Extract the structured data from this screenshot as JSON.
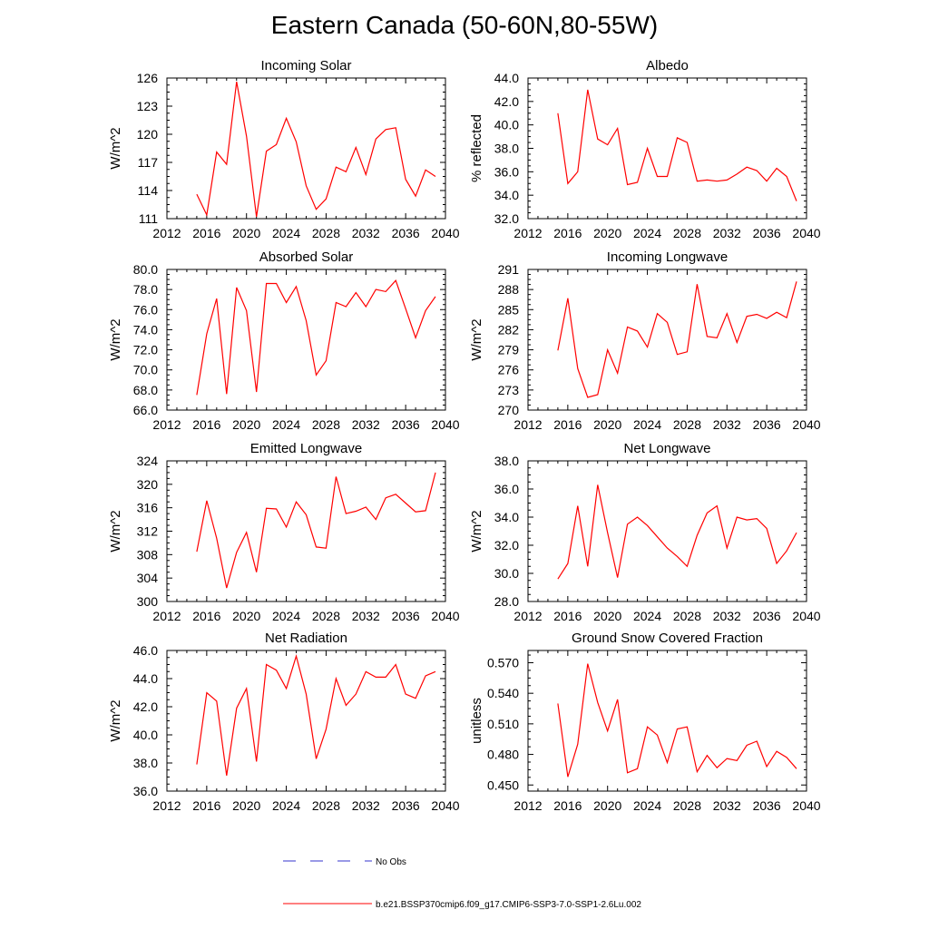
{
  "figure": {
    "title": "Eastern Canada (50-60N,80-55W)"
  },
  "legend": {
    "entries": [
      {
        "label": "No Obs",
        "color": "#3333cc",
        "style": "dashed"
      },
      {
        "label": "b.e21.BSSP370cmip6.f09_g17.CMIP6-SSP3-7.0-SSP1-2.6Lu.002",
        "color": "#ff0000",
        "style": "solid"
      }
    ]
  },
  "chart_data": [
    {
      "type": "line",
      "title": "Incoming Solar",
      "ylabel": "W/m^2",
      "xlim": [
        2012,
        2040
      ],
      "xticks": [
        "2012",
        "2016",
        "2020",
        "2024",
        "2028",
        "2032",
        "2036",
        "2040"
      ],
      "ylim": [
        111,
        126
      ],
      "yticks": [
        "111",
        "114",
        "117",
        "120",
        "123",
        "126"
      ],
      "series": [
        {
          "color": "#ff0000",
          "x": [
            2015,
            2016,
            2017,
            2018,
            2019,
            2020,
            2021,
            2022,
            2023,
            2024,
            2025,
            2026,
            2027,
            2028,
            2029,
            2030,
            2031,
            2032,
            2033,
            2034,
            2035,
            2036,
            2037,
            2038,
            2039
          ],
          "y": [
            113.6,
            111.4,
            118.1,
            116.8,
            125.6,
            119.8,
            111.2,
            118.2,
            118.9,
            121.7,
            119.2,
            114.5,
            112.0,
            113.1,
            116.5,
            116.0,
            118.6,
            115.7,
            119.5,
            120.5,
            120.7,
            115.2,
            113.4,
            116.2,
            115.5
          ]
        }
      ]
    },
    {
      "type": "line",
      "title": "Albedo",
      "ylabel": "% reflected",
      "xlim": [
        2012,
        2040
      ],
      "xticks": [
        "2012",
        "2016",
        "2020",
        "2024",
        "2028",
        "2032",
        "2036",
        "2040"
      ],
      "ylim": [
        32,
        44
      ],
      "yticks": [
        "32.0",
        "34.0",
        "36.0",
        "38.0",
        "40.0",
        "42.0",
        "44.0"
      ],
      "series": [
        {
          "color": "#ff0000",
          "x": [
            2015,
            2016,
            2017,
            2018,
            2019,
            2020,
            2021,
            2022,
            2023,
            2024,
            2025,
            2026,
            2027,
            2028,
            2029,
            2030,
            2031,
            2032,
            2033,
            2034,
            2035,
            2036,
            2037,
            2038,
            2039
          ],
          "y": [
            41.0,
            35.0,
            36.0,
            43.0,
            38.8,
            38.3,
            39.7,
            34.9,
            35.1,
            38.0,
            35.6,
            35.6,
            38.9,
            38.5,
            35.2,
            35.3,
            35.2,
            35.3,
            35.8,
            36.4,
            36.1,
            35.2,
            36.3,
            35.6,
            33.5
          ]
        }
      ]
    },
    {
      "type": "line",
      "title": "Absorbed Solar",
      "ylabel": "W/m^2",
      "xlim": [
        2012,
        2040
      ],
      "xticks": [
        "2012",
        "2016",
        "2020",
        "2024",
        "2028",
        "2032",
        "2036",
        "2040"
      ],
      "ylim": [
        66,
        80
      ],
      "yticks": [
        "66.0",
        "68.0",
        "70.0",
        "72.0",
        "74.0",
        "76.0",
        "78.0",
        "80.0"
      ],
      "series": [
        {
          "color": "#ff0000",
          "x": [
            2015,
            2016,
            2017,
            2018,
            2019,
            2020,
            2021,
            2022,
            2023,
            2024,
            2025,
            2026,
            2027,
            2028,
            2029,
            2030,
            2031,
            2032,
            2033,
            2034,
            2035,
            2036,
            2037,
            2038,
            2039
          ],
          "y": [
            67.5,
            73.6,
            77.1,
            67.6,
            78.2,
            75.9,
            67.8,
            78.6,
            78.6,
            76.7,
            78.3,
            74.9,
            69.5,
            70.9,
            76.7,
            76.3,
            77.7,
            76.3,
            78.0,
            77.8,
            78.9,
            76.1,
            73.2,
            75.9,
            77.3
          ]
        }
      ]
    },
    {
      "type": "line",
      "title": "Incoming Longwave",
      "ylabel": "W/m^2",
      "xlim": [
        2012,
        2040
      ],
      "xticks": [
        "2012",
        "2016",
        "2020",
        "2024",
        "2028",
        "2032",
        "2036",
        "2040"
      ],
      "ylim": [
        270,
        291
      ],
      "yticks": [
        "270",
        "273",
        "276",
        "279",
        "282",
        "285",
        "288",
        "291"
      ],
      "series": [
        {
          "color": "#ff0000",
          "x": [
            2015,
            2016,
            2017,
            2018,
            2019,
            2020,
            2021,
            2022,
            2023,
            2024,
            2025,
            2026,
            2027,
            2028,
            2029,
            2030,
            2031,
            2032,
            2033,
            2034,
            2035,
            2036,
            2037,
            2038,
            2039
          ],
          "y": [
            278.9,
            286.7,
            276.2,
            271.9,
            272.3,
            279.0,
            275.5,
            282.4,
            281.8,
            279.4,
            284.4,
            283.1,
            278.3,
            278.7,
            288.8,
            281.0,
            280.8,
            284.4,
            280.1,
            284.0,
            284.3,
            283.7,
            284.6,
            283.8,
            289.2
          ]
        }
      ]
    },
    {
      "type": "line",
      "title": "Emitted Longwave",
      "ylabel": "W/m^2",
      "xlim": [
        2012,
        2040
      ],
      "xticks": [
        "2012",
        "2016",
        "2020",
        "2024",
        "2028",
        "2032",
        "2036",
        "2040"
      ],
      "ylim": [
        300,
        324
      ],
      "yticks": [
        "300",
        "304",
        "308",
        "312",
        "316",
        "320",
        "324"
      ],
      "series": [
        {
          "color": "#ff0000",
          "x": [
            2015,
            2016,
            2017,
            2018,
            2019,
            2020,
            2021,
            2022,
            2023,
            2024,
            2025,
            2026,
            2027,
            2028,
            2029,
            2030,
            2031,
            2032,
            2033,
            2034,
            2035,
            2036,
            2037,
            2038,
            2039
          ],
          "y": [
            308.5,
            317.2,
            310.8,
            302.3,
            308.4,
            311.8,
            305.0,
            315.9,
            315.8,
            312.7,
            317.0,
            314.8,
            309.3,
            309.1,
            321.3,
            315.0,
            315.4,
            316.1,
            314.0,
            317.7,
            318.3,
            316.8,
            315.3,
            315.5,
            322.0
          ]
        }
      ]
    },
    {
      "type": "line",
      "title": "Net Longwave",
      "ylabel": "W/m^2",
      "xlim": [
        2012,
        2040
      ],
      "xticks": [
        "2012",
        "2016",
        "2020",
        "2024",
        "2028",
        "2032",
        "2036",
        "2040"
      ],
      "ylim": [
        28,
        38
      ],
      "yticks": [
        "28.0",
        "30.0",
        "32.0",
        "34.0",
        "36.0",
        "38.0"
      ],
      "series": [
        {
          "color": "#ff0000",
          "x": [
            2015,
            2016,
            2017,
            2018,
            2019,
            2020,
            2021,
            2022,
            2023,
            2024,
            2025,
            2026,
            2027,
            2028,
            2029,
            2030,
            2031,
            2032,
            2033,
            2034,
            2035,
            2036,
            2037,
            2038,
            2039
          ],
          "y": [
            29.6,
            30.7,
            34.8,
            30.5,
            36.3,
            32.9,
            29.7,
            33.5,
            34.0,
            33.4,
            32.6,
            31.8,
            31.2,
            30.5,
            32.7,
            34.3,
            34.8,
            31.8,
            34.0,
            33.8,
            33.9,
            33.2,
            30.7,
            31.6,
            32.9
          ]
        }
      ]
    },
    {
      "type": "line",
      "title": "Net Radiation",
      "ylabel": "W/m^2",
      "xlim": [
        2012,
        2040
      ],
      "xticks": [
        "2012",
        "2016",
        "2020",
        "2024",
        "2028",
        "2032",
        "2036",
        "2040"
      ],
      "ylim": [
        36,
        46
      ],
      "yticks": [
        "36.0",
        "38.0",
        "40.0",
        "42.0",
        "44.0",
        "46.0"
      ],
      "series": [
        {
          "color": "#ff0000",
          "x": [
            2015,
            2016,
            2017,
            2018,
            2019,
            2020,
            2021,
            2022,
            2023,
            2024,
            2025,
            2026,
            2027,
            2028,
            2029,
            2030,
            2031,
            2032,
            2033,
            2034,
            2035,
            2036,
            2037,
            2038,
            2039
          ],
          "y": [
            37.9,
            43.0,
            42.4,
            37.1,
            41.9,
            43.3,
            38.1,
            45.0,
            44.6,
            43.3,
            45.6,
            42.9,
            38.3,
            40.4,
            44.0,
            42.1,
            42.9,
            44.5,
            44.1,
            44.1,
            45.0,
            42.9,
            42.6,
            44.2,
            44.5
          ]
        }
      ]
    },
    {
      "type": "line",
      "title": "Ground Snow Covered Fraction",
      "ylabel": "unitless",
      "xlim": [
        2012,
        2040
      ],
      "xticks": [
        "2012",
        "2016",
        "2020",
        "2024",
        "2028",
        "2032",
        "2036",
        "2040"
      ],
      "ylim": [
        0.444,
        0.582
      ],
      "yticks": [
        "0.450",
        "0.480",
        "0.510",
        "0.540",
        "0.570"
      ],
      "ytick_values": [
        0.45,
        0.48,
        0.51,
        0.54,
        0.57
      ],
      "series": [
        {
          "color": "#ff0000",
          "x": [
            2015,
            2016,
            2017,
            2018,
            2019,
            2020,
            2021,
            2022,
            2023,
            2024,
            2025,
            2026,
            2027,
            2028,
            2029,
            2030,
            2031,
            2032,
            2033,
            2034,
            2035,
            2036,
            2037,
            2038,
            2039
          ],
          "y": [
            0.53,
            0.458,
            0.49,
            0.569,
            0.531,
            0.503,
            0.534,
            0.462,
            0.466,
            0.507,
            0.499,
            0.472,
            0.505,
            0.507,
            0.463,
            0.479,
            0.467,
            0.476,
            0.474,
            0.489,
            0.493,
            0.468,
            0.483,
            0.477,
            0.466
          ]
        }
      ]
    }
  ]
}
